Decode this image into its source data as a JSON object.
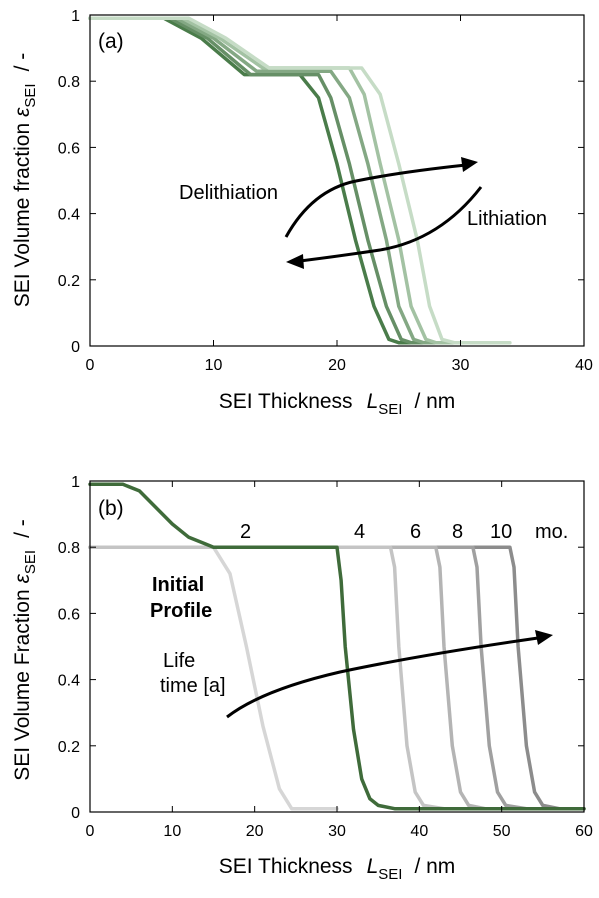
{
  "chart_data": [
    {
      "type": "line",
      "panel_label": "(a)",
      "xlabel": {
        "main": "SEI Thickness",
        "symbol": "L",
        "subscript": "SEI",
        "unit": "/  nm"
      },
      "ylabel": {
        "main": "SEI Volume fraction",
        "symbol": "ε",
        "subscript": "SEI",
        "unit": "/  -"
      },
      "xlim": [
        0,
        40
      ],
      "ylim": [
        0,
        1
      ],
      "xticks": [
        "0",
        "10",
        "20",
        "30",
        "40"
      ],
      "yticks": [
        "0",
        "0.2",
        "0.4",
        "0.6",
        "0.8",
        "1"
      ],
      "grid": false,
      "annotations": {
        "left": "Delithiation",
        "right": "Lithiation"
      },
      "series": [
        {
          "color": "#4a7c4a",
          "x": [
            0,
            6,
            9,
            12.5,
            17,
            18.5,
            20,
            21.5,
            23,
            24.2,
            25,
            30
          ],
          "y": [
            0.99,
            0.99,
            0.93,
            0.82,
            0.82,
            0.75,
            0.55,
            0.32,
            0.12,
            0.02,
            0.01,
            0.01
          ]
        },
        {
          "color": "#668f66",
          "x": [
            0,
            6.5,
            9.5,
            13,
            18.5,
            19.5,
            21,
            22.5,
            24,
            25.2,
            26,
            31
          ],
          "y": [
            0.99,
            0.99,
            0.93,
            0.82,
            0.82,
            0.75,
            0.55,
            0.32,
            0.12,
            0.02,
            0.01,
            0.01
          ]
        },
        {
          "color": "#84a884",
          "x": [
            0,
            7,
            10,
            13.5,
            19.5,
            21,
            22.5,
            24,
            25,
            26.2,
            27,
            32
          ],
          "y": [
            0.99,
            0.99,
            0.93,
            0.83,
            0.83,
            0.75,
            0.55,
            0.32,
            0.12,
            0.02,
            0.01,
            0.01
          ]
        },
        {
          "color": "#a3c2a3",
          "x": [
            0,
            7.5,
            10.5,
            14,
            21,
            22.2,
            23.5,
            25,
            26,
            27.2,
            28,
            33
          ],
          "y": [
            0.99,
            0.99,
            0.93,
            0.84,
            0.84,
            0.76,
            0.55,
            0.32,
            0.12,
            0.02,
            0.01,
            0.01
          ]
        },
        {
          "color": "#c6dcc6",
          "x": [
            0,
            8,
            11,
            14.5,
            22,
            23.5,
            25,
            26.5,
            27.5,
            28.5,
            29.5,
            34
          ],
          "y": [
            0.99,
            0.99,
            0.93,
            0.84,
            0.84,
            0.76,
            0.55,
            0.32,
            0.12,
            0.02,
            0.01,
            0.01
          ]
        }
      ]
    },
    {
      "type": "line",
      "panel_label": "(b)",
      "xlabel": {
        "main": "SEI Thickness",
        "symbol": "L",
        "subscript": "SEI",
        "unit": "/  nm"
      },
      "ylabel": {
        "main": "SEI Volume Fraction",
        "symbol": "ε",
        "subscript": "SEI",
        "unit": "/  -"
      },
      "xlim": [
        0,
        60
      ],
      "ylim": [
        0,
        1
      ],
      "xticks": [
        "0",
        "10",
        "20",
        "30",
        "40",
        "50",
        "60"
      ],
      "yticks": [
        "0",
        "0.2",
        "0.4",
        "0.6",
        "0.8",
        "1"
      ],
      "grid": false,
      "annotations": {
        "lifetime_line1": "Life",
        "lifetime_line2": "time [a]",
        "initial_line1": "Initial",
        "initial_line2": "Profile",
        "unit_suffix": "mo."
      },
      "series": [
        {
          "name": "Initial Profile",
          "color": "#d6d6d6",
          "x": [
            0,
            15,
            17,
            19,
            21,
            23,
            24.5,
            30
          ],
          "y": [
            0.8,
            0.8,
            0.72,
            0.5,
            0.26,
            0.07,
            0.01,
            0.01
          ]
        },
        {
          "name": "10",
          "color": "#8c8c8c",
          "x": [
            0,
            51,
            51.5,
            52,
            53,
            54,
            55,
            57,
            60
          ],
          "y": [
            0.8,
            0.8,
            0.74,
            0.5,
            0.2,
            0.06,
            0.02,
            0.01,
            0.01
          ]
        },
        {
          "name": "8",
          "color": "#a0a0a0",
          "x": [
            0,
            46.5,
            47,
            47.5,
            48.5,
            49.5,
            50.5,
            53
          ],
          "y": [
            0.8,
            0.8,
            0.74,
            0.5,
            0.2,
            0.06,
            0.02,
            0.01
          ]
        },
        {
          "name": "6",
          "color": "#b4b4b4",
          "x": [
            0,
            42,
            42.5,
            43,
            44,
            45,
            46,
            48
          ],
          "y": [
            0.8,
            0.8,
            0.74,
            0.5,
            0.2,
            0.06,
            0.02,
            0.01
          ]
        },
        {
          "name": "4",
          "color": "#c4c4c4",
          "x": [
            0,
            36.5,
            37,
            37.5,
            38.5,
            39.5,
            40.5,
            43
          ],
          "y": [
            0.8,
            0.8,
            0.74,
            0.5,
            0.2,
            0.06,
            0.02,
            0.01
          ]
        },
        {
          "name": "2",
          "color": "#3f6b3a",
          "x": [
            0,
            4,
            6,
            8,
            10,
            12,
            14,
            15,
            30,
            30.5,
            31,
            32,
            33,
            34,
            35,
            37,
            60
          ],
          "y": [
            0.99,
            0.99,
            0.97,
            0.92,
            0.87,
            0.83,
            0.81,
            0.8,
            0.8,
            0.7,
            0.5,
            0.25,
            0.1,
            0.04,
            0.02,
            0.01,
            0.01
          ]
        }
      ]
    }
  ]
}
